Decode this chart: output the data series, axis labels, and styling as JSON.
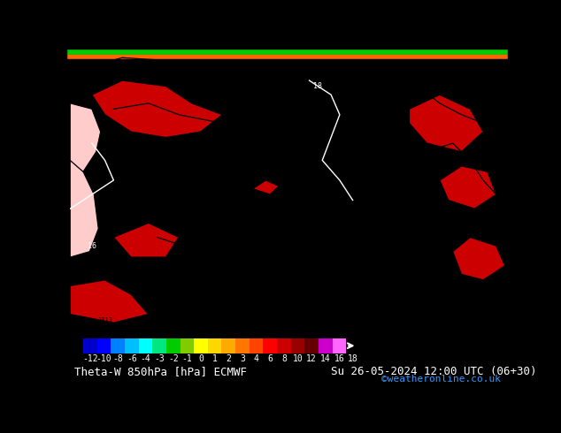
{
  "title_left": "Theta-W 850hPa [hPa] ECMWF",
  "title_right": "Su 26-05-2024 12:00 UTC (06+30)",
  "credit": "©weatheronline.co.uk",
  "colorbar_labels": [
    "-12",
    "-10",
    "-8",
    "-6",
    "-4",
    "-3",
    "-2",
    "-1",
    "0",
    "1",
    "2",
    "3",
    "4",
    "6",
    "8",
    "10",
    "12",
    "14",
    "16",
    "18"
  ],
  "colors": [
    "#0000cd",
    "#0000ff",
    "#007fff",
    "#00bfff",
    "#00ffff",
    "#00e680",
    "#00cc00",
    "#80cc00",
    "#ffff00",
    "#ffd700",
    "#ffaa00",
    "#ff7700",
    "#ff4400",
    "#ff0000",
    "#cc0000",
    "#990000",
    "#660000",
    "#cc00cc",
    "#ff66ff"
  ],
  "map_bg_color": "#cc0000",
  "orange_stripe_color": "#ff6600",
  "green_stripe_color": "#00cc00",
  "black_color": "#000000",
  "white_color": "#ffffff",
  "fig_width": 6.34,
  "fig_height": 4.9,
  "dpi": 100,
  "title_fontsize": 9,
  "credit_fontsize": 8,
  "label_fontsize": 7
}
